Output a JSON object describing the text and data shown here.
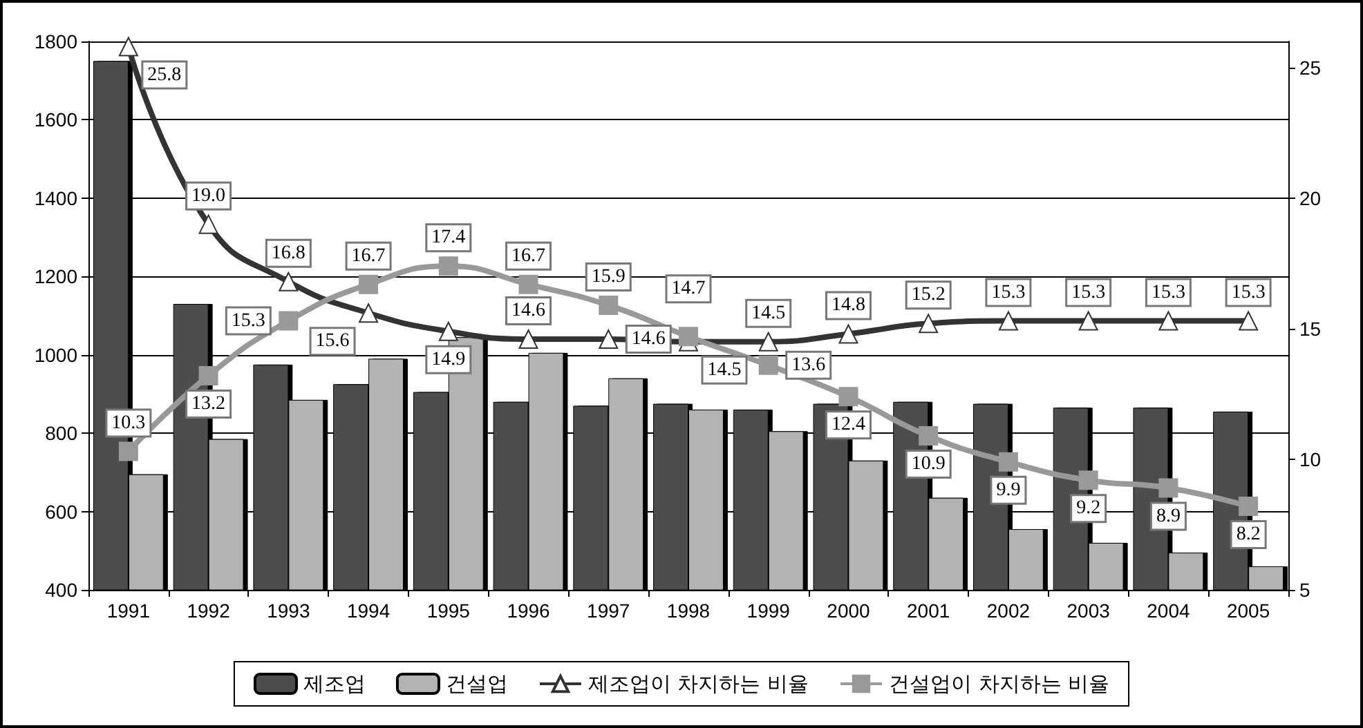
{
  "chart_data": {
    "type": "bar",
    "categories": [
      "1991",
      "1992",
      "1993",
      "1994",
      "1995",
      "1996",
      "1997",
      "1998",
      "1999",
      "2000",
      "2001",
      "2002",
      "2003",
      "2004",
      "2005"
    ],
    "series": [
      {
        "name": "제조업",
        "color": "#4d4d4d",
        "values": [
          1750,
          1130,
          975,
          925,
          905,
          880,
          870,
          875,
          860,
          875,
          880,
          875,
          865,
          865,
          855
        ]
      },
      {
        "name": "건설업",
        "color": "#b3b3b3",
        "values": [
          695,
          785,
          885,
          990,
          1045,
          1005,
          940,
          860,
          805,
          730,
          635,
          555,
          520,
          495,
          460
        ]
      },
      {
        "name": "제조업이 차지하는 비율",
        "type": "line",
        "axis": "y2",
        "color": "#333333",
        "marker": "triangle",
        "values": [
          25.8,
          19.0,
          16.8,
          15.6,
          14.9,
          14.6,
          14.6,
          14.5,
          14.5,
          14.8,
          15.2,
          15.3,
          15.3,
          15.3,
          15.3
        ],
        "value_labels": [
          "25.8",
          "19.0",
          "16.8",
          "15.6",
          "14.9",
          "14.6",
          "14.6",
          "14.5",
          "14.5",
          "14.8",
          "15.2",
          "15.3",
          "15.3",
          "15.3",
          "15.3"
        ]
      },
      {
        "name": "건설업이 차지하는 비율",
        "type": "line",
        "axis": "y2",
        "color": "#999999",
        "marker": "square",
        "values": [
          10.3,
          13.2,
          15.3,
          16.7,
          17.4,
          16.7,
          15.9,
          14.7,
          13.6,
          12.4,
          10.9,
          9.9,
          9.2,
          8.9,
          8.2
        ],
        "value_labels": [
          "10.3",
          "13.2",
          "15.3",
          "16.7",
          "17.4",
          "16.7",
          "15.9",
          "14.7",
          "13.6",
          "12.4",
          "10.9",
          "9.9",
          "9.2",
          "8.9",
          "8.2"
        ]
      }
    ],
    "ylim": [
      400,
      1800
    ],
    "yticks": [
      400,
      600,
      800,
      1000,
      1200,
      1400,
      1600,
      1800
    ],
    "y2lim": [
      5,
      26
    ],
    "y2ticks": [
      5,
      10,
      15,
      20,
      25
    ],
    "grid": "y",
    "legend": "bottom"
  }
}
